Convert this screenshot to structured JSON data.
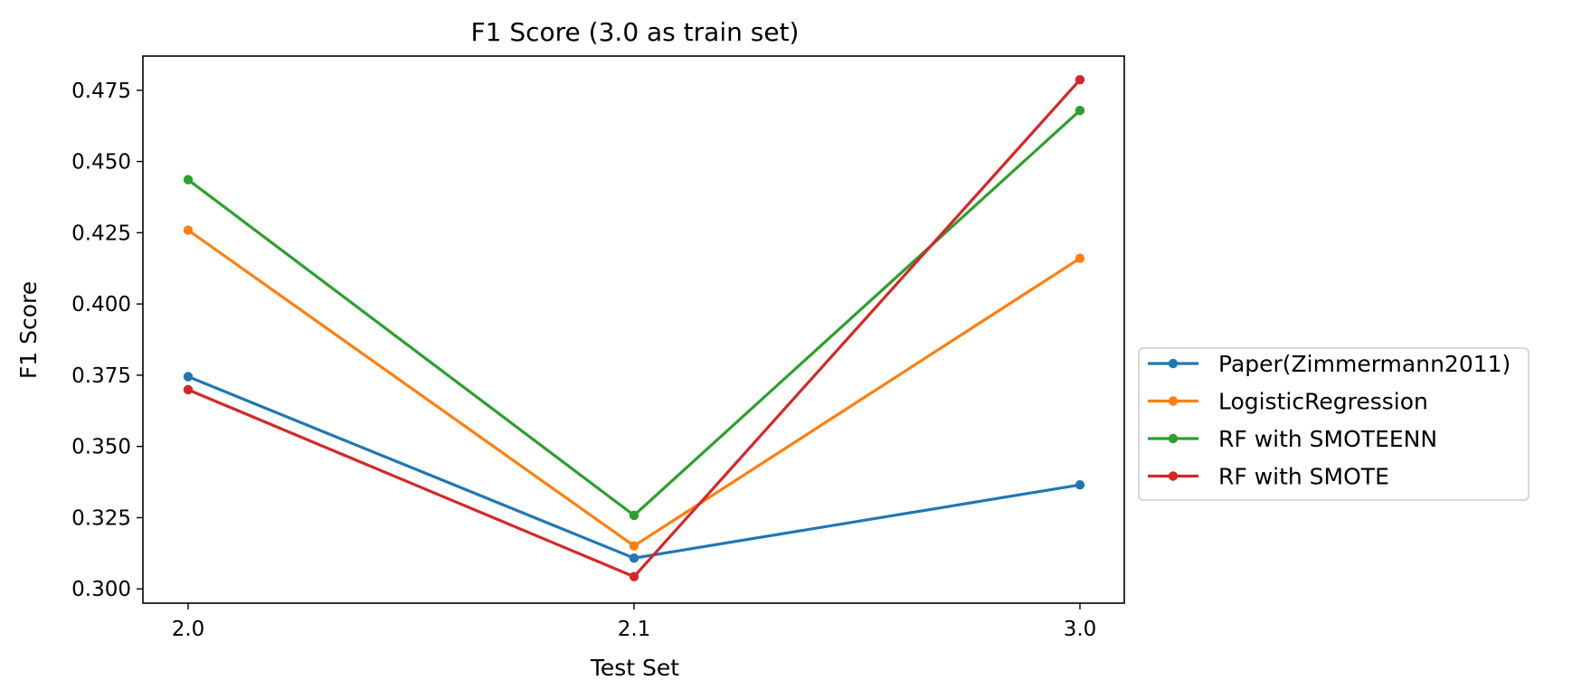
{
  "chart_data": {
    "type": "line",
    "title": "F1 Score (3.0 as train set)",
    "xlabel": "Test Set",
    "ylabel": "F1 Score",
    "categories": [
      "2.0",
      "2.1",
      "3.0"
    ],
    "ylim": [
      0.295,
      0.487
    ],
    "yticks": [
      0.3,
      0.325,
      0.35,
      0.375,
      0.4,
      0.425,
      0.45,
      0.475
    ],
    "ytick_labels": [
      "0.300",
      "0.325",
      "0.350",
      "0.375",
      "0.400",
      "0.425",
      "0.450",
      "0.475"
    ],
    "grid": false,
    "legend_position": "right, outside plot",
    "series": [
      {
        "name": "Paper(Zimmermann2011)",
        "color": "#1f77b4",
        "values": [
          0.3745,
          0.3108,
          0.3365
        ]
      },
      {
        "name": "LogisticRegression",
        "color": "#ff7f0e",
        "values": [
          0.4259,
          0.3151,
          0.416
        ]
      },
      {
        "name": "RF with SMOTEENN",
        "color": "#2ca02c",
        "values": [
          0.4436,
          0.3258,
          0.4679
        ]
      },
      {
        "name": "RF with SMOTE",
        "color": "#d62728",
        "values": [
          0.3699,
          0.3043,
          0.4787
        ]
      }
    ]
  }
}
